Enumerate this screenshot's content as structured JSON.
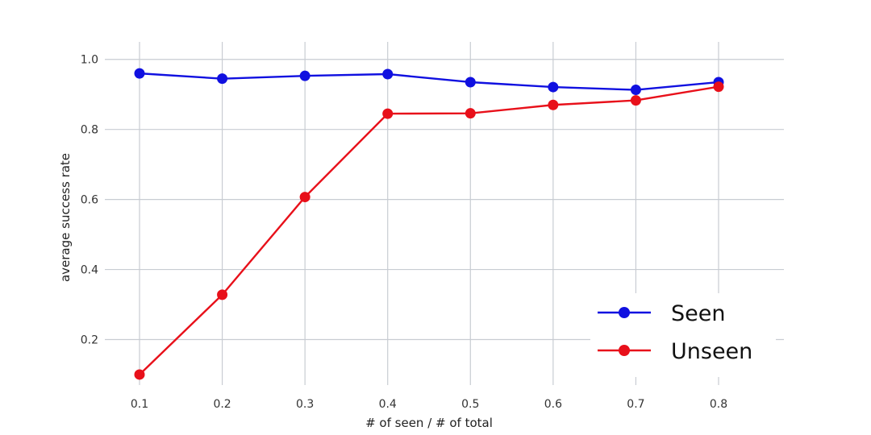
{
  "chart_data": {
    "type": "line",
    "title": "",
    "xlabel": "# of seen / # of total",
    "ylabel": "average success rate",
    "x": [
      0.1,
      0.2,
      0.3,
      0.4,
      0.5,
      0.6,
      0.7,
      0.8
    ],
    "x_tick_labels": [
      "0.1",
      "0.2",
      "0.3",
      "0.4",
      "0.5",
      "0.6",
      "0.7",
      "0.8"
    ],
    "y_ticks": [
      0.2,
      0.4,
      0.6,
      0.8,
      1.0
    ],
    "y_tick_labels": [
      "0.2",
      "0.4",
      "0.6",
      "0.8",
      "1.0"
    ],
    "ylim": [
      0.07,
      1.05
    ],
    "grid": true,
    "legend_position": "bottom-right",
    "series": [
      {
        "name": "Seen",
        "color": "#1010e0",
        "values": [
          0.96,
          0.945,
          0.953,
          0.958,
          0.935,
          0.921,
          0.913,
          0.935
        ]
      },
      {
        "name": "Unseen",
        "color": "#e8101a",
        "values": [
          0.1,
          0.328,
          0.607,
          0.845,
          0.846,
          0.87,
          0.883,
          0.922
        ]
      }
    ]
  }
}
